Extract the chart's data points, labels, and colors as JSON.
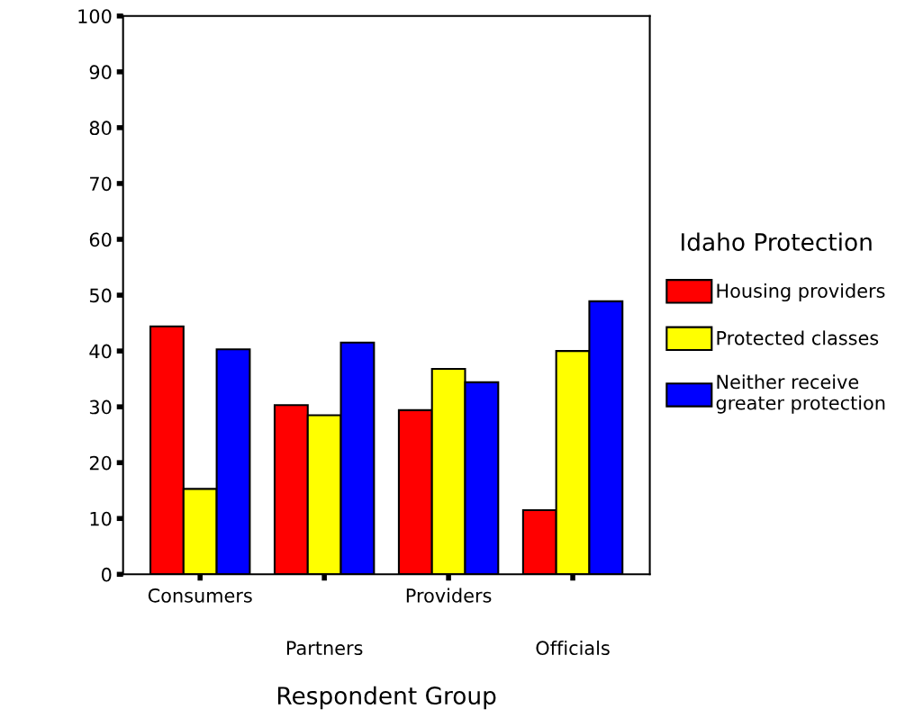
{
  "chart_data": {
    "type": "bar",
    "xlabel": "Respondent Group",
    "legend_title": "Idaho Protection",
    "categories": [
      "Consumers",
      "Partners",
      "Providers",
      "Officials"
    ],
    "series": [
      {
        "name": "Housing providers",
        "color": "#ff0000",
        "values": [
          44.4,
          30.3,
          29.4,
          11.5
        ]
      },
      {
        "name": "Protected classes",
        "color": "#ffff00",
        "values": [
          15.3,
          28.5,
          36.8,
          40.0
        ]
      },
      {
        "name": "Neither receive\ngreater protection",
        "color": "#0000ff",
        "values": [
          40.3,
          41.5,
          34.4,
          48.9
        ]
      }
    ],
    "ylim": [
      0,
      100
    ],
    "yticks": [
      0,
      10,
      20,
      30,
      40,
      50,
      60,
      70,
      80,
      90,
      100
    ],
    "grid": false,
    "legend": "right"
  }
}
